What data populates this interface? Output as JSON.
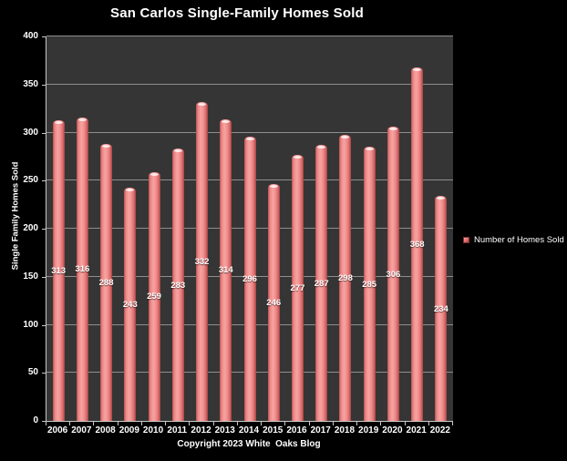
{
  "title": "San Carlos Single-Family Homes Sold",
  "y_axis_title": "Single Family Homes Sold",
  "legend": {
    "label": "Number of Homes Sold"
  },
  "footer": {
    "copyright": "Copyright 2023 White  Oaks Blog"
  },
  "colors": {
    "background": "#000000",
    "plot_background": "#353535",
    "gridline": "#8e8e8e",
    "axis_line": "#c8c8c8",
    "bar_light": "#f7a3a2",
    "bar_main": "#e06665",
    "bar_dark": "#a44241",
    "text": "#ffffff"
  },
  "chart_data": {
    "type": "bar",
    "title": "San Carlos Single-Family Homes Sold",
    "series_name": "Number of Homes Sold",
    "categories": [
      "2006",
      "2007",
      "2008",
      "2009",
      "2010",
      "2011",
      "2012",
      "2013",
      "2014",
      "2015",
      "2016",
      "2017",
      "2018",
      "2019",
      "2020",
      "2021",
      "2022"
    ],
    "values": [
      313,
      316,
      288,
      243,
      259,
      283,
      332,
      314,
      296,
      246,
      277,
      287,
      298,
      285,
      306,
      368,
      234
    ],
    "xlabel": "",
    "ylabel": "Single Family Homes Sold",
    "ylim": [
      0,
      400
    ],
    "yticks": [
      0,
      50,
      100,
      150,
      200,
      250,
      300,
      350,
      400
    ],
    "grid": true,
    "legend_position": "right",
    "data_labels_position": "center",
    "bar_style": "cylinder-red"
  }
}
